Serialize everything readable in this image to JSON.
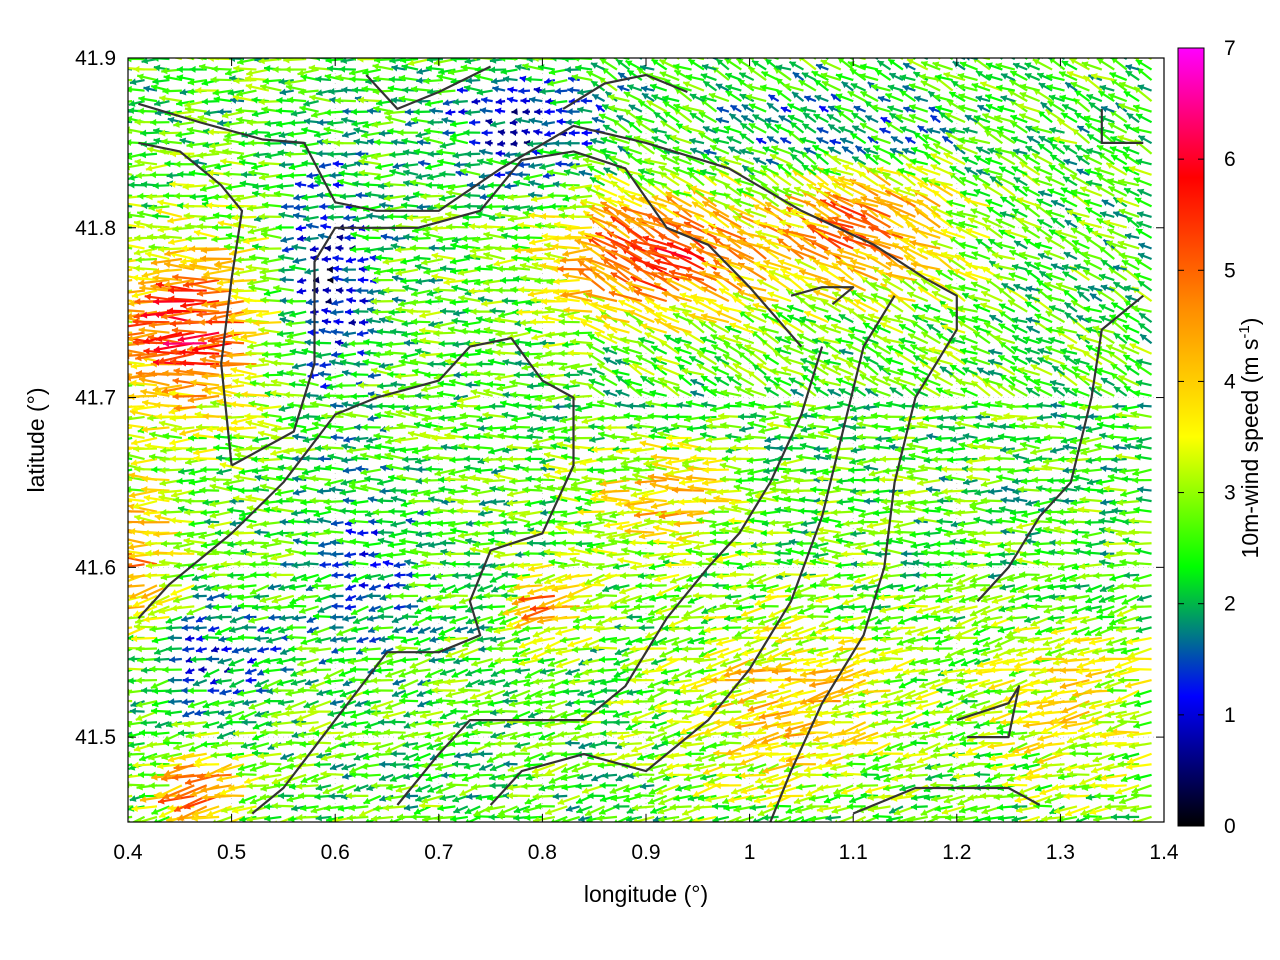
{
  "chart_data": {
    "type": "vector-field",
    "title": "",
    "xlabel": "longitude (°)",
    "ylabel": "latitude (°)",
    "xlim": [
      0.4,
      1.4
    ],
    "ylim": [
      41.45,
      41.9
    ],
    "xticks": [
      "0.4",
      "0.5",
      "0.6",
      "0.7",
      "0.8",
      "0.9",
      "1",
      "1.1",
      "1.2",
      "1.3",
      "1.4"
    ],
    "xtick_values": [
      0.4,
      0.5,
      0.6,
      0.7,
      0.8,
      0.9,
      1.0,
      1.1,
      1.2,
      1.3,
      1.4
    ],
    "yticks": [
      "41.5",
      "41.6",
      "41.7",
      "41.8",
      "41.9"
    ],
    "ytick_values": [
      41.5,
      41.6,
      41.7,
      41.8,
      41.9
    ],
    "grid": true,
    "colorbar": {
      "label_main": "10m-wind speed (m s",
      "label_exp": "-1",
      "label_close": ")",
      "range": [
        0,
        7
      ],
      "ticks": [
        "0",
        "1",
        "2",
        "3",
        "4",
        "5",
        "6",
        "7"
      ],
      "tick_values": [
        0,
        1,
        2,
        3,
        4,
        5,
        6,
        7
      ],
      "colors": [
        "#000000",
        "#0000ff",
        "#00ff00",
        "#ffff00",
        "#ff8c00",
        "#ff0000",
        "#ff00ff"
      ]
    },
    "contour_color": "#333333",
    "contours": [
      [
        [
          0.41,
          41.873
        ],
        [
          0.47,
          41.862
        ],
        [
          0.53,
          41.852
        ],
        [
          0.57,
          41.85
        ],
        [
          0.6,
          41.815
        ],
        [
          0.64,
          41.81
        ],
        [
          0.7,
          41.81
        ],
        [
          0.76,
          41.835
        ],
        [
          0.83,
          41.86
        ],
        [
          0.9,
          41.85
        ],
        [
          0.98,
          41.835
        ],
        [
          1.05,
          41.81
        ],
        [
          1.12,
          41.79
        ],
        [
          1.17,
          41.77
        ],
        [
          1.2,
          41.76
        ],
        [
          1.2,
          41.74
        ],
        [
          1.16,
          41.7
        ],
        [
          1.14,
          41.65
        ],
        [
          1.13,
          41.6
        ],
        [
          1.11,
          41.56
        ],
        [
          1.07,
          41.52
        ],
        [
          1.04,
          41.48
        ],
        [
          1.02,
          41.45
        ]
      ],
      [
        [
          0.41,
          41.85
        ],
        [
          0.45,
          41.845
        ],
        [
          0.49,
          41.825
        ],
        [
          0.51,
          41.81
        ],
        [
          0.5,
          41.77
        ],
        [
          0.49,
          41.72
        ],
        [
          0.5,
          41.66
        ]
      ],
      [
        [
          0.5,
          41.66
        ],
        [
          0.56,
          41.68
        ],
        [
          0.58,
          41.72
        ],
        [
          0.58,
          41.78
        ],
        [
          0.6,
          41.8
        ],
        [
          0.68,
          41.8
        ],
        [
          0.74,
          41.81
        ],
        [
          0.78,
          41.84
        ],
        [
          0.83,
          41.845
        ],
        [
          0.88,
          41.835
        ],
        [
          0.92,
          41.8
        ],
        [
          0.96,
          41.79
        ],
        [
          1.0,
          41.765
        ],
        [
          1.05,
          41.73
        ]
      ],
      [
        [
          0.41,
          41.57
        ],
        [
          0.44,
          41.59
        ],
        [
          0.5,
          41.62
        ],
        [
          0.55,
          41.65
        ],
        [
          0.6,
          41.69
        ],
        [
          0.64,
          41.7
        ],
        [
          0.7,
          41.71
        ],
        [
          0.73,
          41.73
        ],
        [
          0.77,
          41.735
        ],
        [
          0.8,
          41.71
        ],
        [
          0.83,
          41.7
        ],
        [
          0.83,
          41.66
        ],
        [
          0.8,
          41.62
        ],
        [
          0.75,
          41.61
        ],
        [
          0.73,
          41.58
        ],
        [
          0.74,
          41.56
        ],
        [
          0.7,
          41.55
        ],
        [
          0.65,
          41.55
        ],
        [
          0.6,
          41.51
        ],
        [
          0.55,
          41.47
        ],
        [
          0.52,
          41.455
        ]
      ],
      [
        [
          0.66,
          41.46
        ],
        [
          0.7,
          41.49
        ],
        [
          0.73,
          41.51
        ],
        [
          0.78,
          41.51
        ],
        [
          0.84,
          41.51
        ],
        [
          0.88,
          41.53
        ],
        [
          0.92,
          41.57
        ],
        [
          0.96,
          41.6
        ],
        [
          0.99,
          41.62
        ],
        [
          1.02,
          41.65
        ],
        [
          1.05,
          41.69
        ],
        [
          1.07,
          41.73
        ]
      ],
      [
        [
          0.75,
          41.46
        ],
        [
          0.78,
          41.48
        ],
        [
          0.84,
          41.49
        ],
        [
          0.9,
          41.48
        ],
        [
          0.96,
          41.51
        ],
        [
          1.0,
          41.54
        ],
        [
          1.04,
          41.58
        ],
        [
          1.07,
          41.63
        ],
        [
          1.09,
          41.68
        ],
        [
          1.11,
          41.73
        ],
        [
          1.14,
          41.76
        ]
      ],
      [
        [
          1.1,
          41.455
        ],
        [
          1.16,
          41.47
        ],
        [
          1.25,
          41.47
        ],
        [
          1.28,
          41.46
        ]
      ],
      [
        [
          1.2,
          41.51
        ],
        [
          1.25,
          41.52
        ],
        [
          1.26,
          41.53
        ],
        [
          1.25,
          41.5
        ],
        [
          1.21,
          41.5
        ]
      ],
      [
        [
          1.22,
          41.58
        ],
        [
          1.25,
          41.6
        ],
        [
          1.28,
          41.63
        ],
        [
          1.31,
          41.65
        ],
        [
          1.33,
          41.7
        ],
        [
          1.34,
          41.74
        ],
        [
          1.38,
          41.76
        ]
      ],
      [
        [
          1.34,
          41.87
        ],
        [
          1.34,
          41.85
        ],
        [
          1.38,
          41.85
        ]
      ],
      [
        [
          0.63,
          41.89
        ],
        [
          0.66,
          41.87
        ],
        [
          0.7,
          41.88
        ],
        [
          0.75,
          41.895
        ]
      ],
      [
        [
          0.82,
          41.87
        ],
        [
          0.86,
          41.885
        ],
        [
          0.9,
          41.89
        ],
        [
          0.94,
          41.88
        ]
      ],
      [
        [
          1.04,
          41.76
        ],
        [
          1.07,
          41.765
        ],
        [
          1.1,
          41.765
        ],
        [
          1.08,
          41.755
        ]
      ]
    ]
  }
}
